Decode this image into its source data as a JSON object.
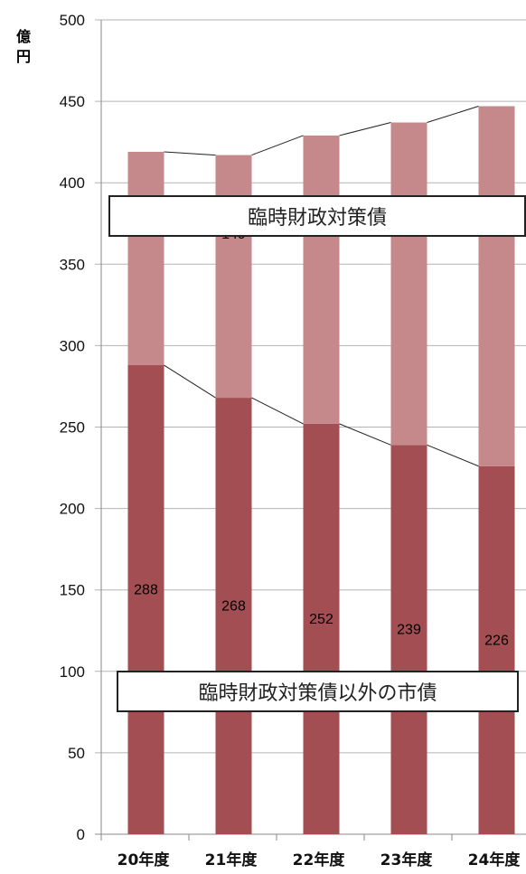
{
  "chart_data": {
    "type": "bar",
    "stacked": true,
    "unit_label": "億円",
    "categories": [
      "20年度",
      "21年度",
      "22年度",
      "23年度",
      "24年度"
    ],
    "series": [
      {
        "name": "臨時財政対策債以外の市債",
        "values": [
          288,
          268,
          252,
          239,
          226
        ],
        "color": "#a24e52"
      },
      {
        "name": "臨時財政対策債",
        "values": [
          131,
          149,
          177,
          198,
          221
        ],
        "color": "#c5888b"
      }
    ],
    "ylim": [
      0,
      500
    ],
    "yticks": [
      0,
      50,
      100,
      150,
      200,
      250,
      300,
      350,
      400,
      450,
      500
    ],
    "grid": true,
    "series_lines": true
  }
}
